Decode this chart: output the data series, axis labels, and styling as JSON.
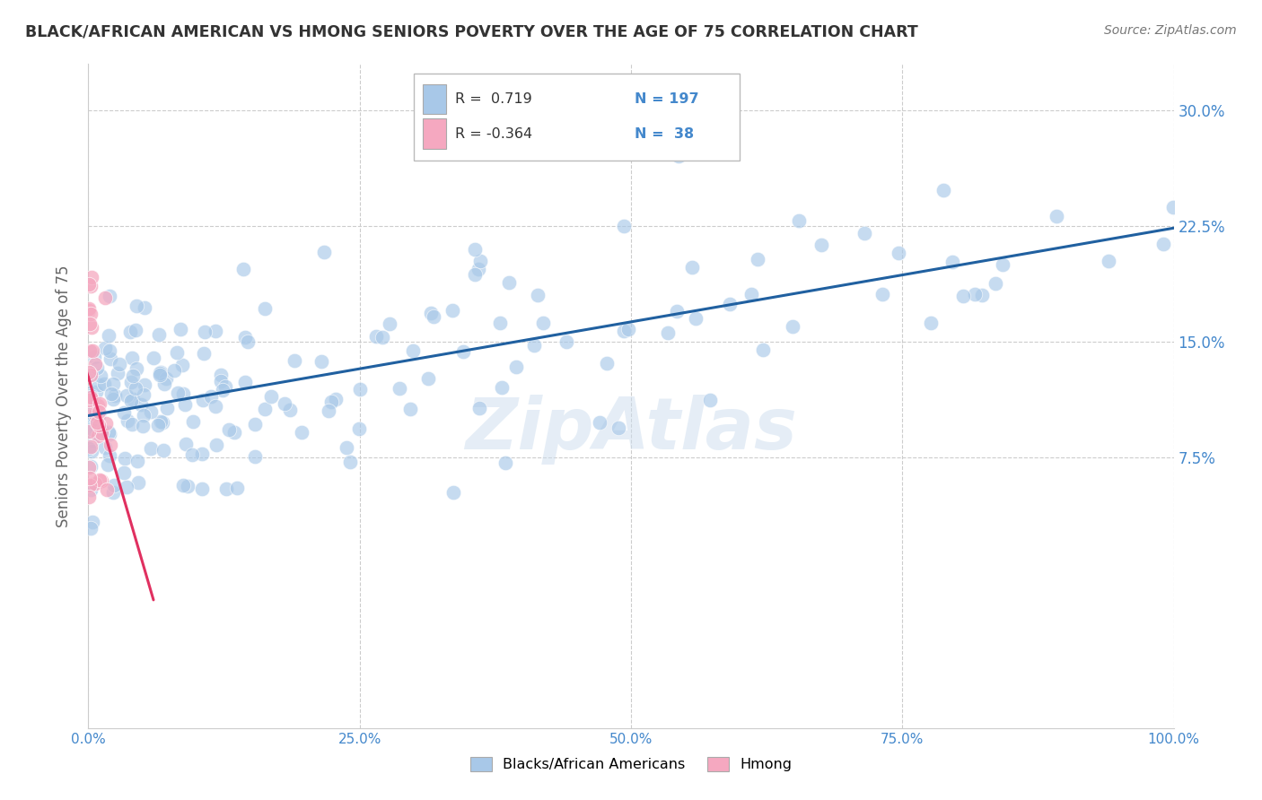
{
  "title": "BLACK/AFRICAN AMERICAN VS HMONG SENIORS POVERTY OVER THE AGE OF 75 CORRELATION CHART",
  "source_text": "Source: ZipAtlas.com",
  "ylabel": "Seniors Poverty Over the Age of 75",
  "xlabel": "",
  "xlim": [
    0.0,
    1.0
  ],
  "ylim": [
    -0.1,
    0.33
  ],
  "xticks": [
    0.0,
    0.25,
    0.5,
    0.75,
    1.0
  ],
  "xtick_labels": [
    "0.0%",
    "25.0%",
    "50.0%",
    "75.0%",
    "100.0%"
  ],
  "yticks": [
    0.075,
    0.15,
    0.225,
    0.3
  ],
  "ytick_labels": [
    "7.5%",
    "15.0%",
    "22.5%",
    "30.0%"
  ],
  "blue_R": 0.719,
  "blue_N": 197,
  "pink_R": -0.364,
  "pink_N": 38,
  "blue_color": "#a8c8e8",
  "pink_color": "#f5a8c0",
  "blue_line_color": "#2060a0",
  "pink_line_color": "#e03060",
  "watermark": "ZipAtlas",
  "legend_blue_label": "Blacks/African Americans",
  "legend_pink_label": "Hmong",
  "title_color": "#333333",
  "axis_label_color": "#666666",
  "tick_color": "#4488cc",
  "grid_color": "#cccccc",
  "background_color": "#ffffff"
}
